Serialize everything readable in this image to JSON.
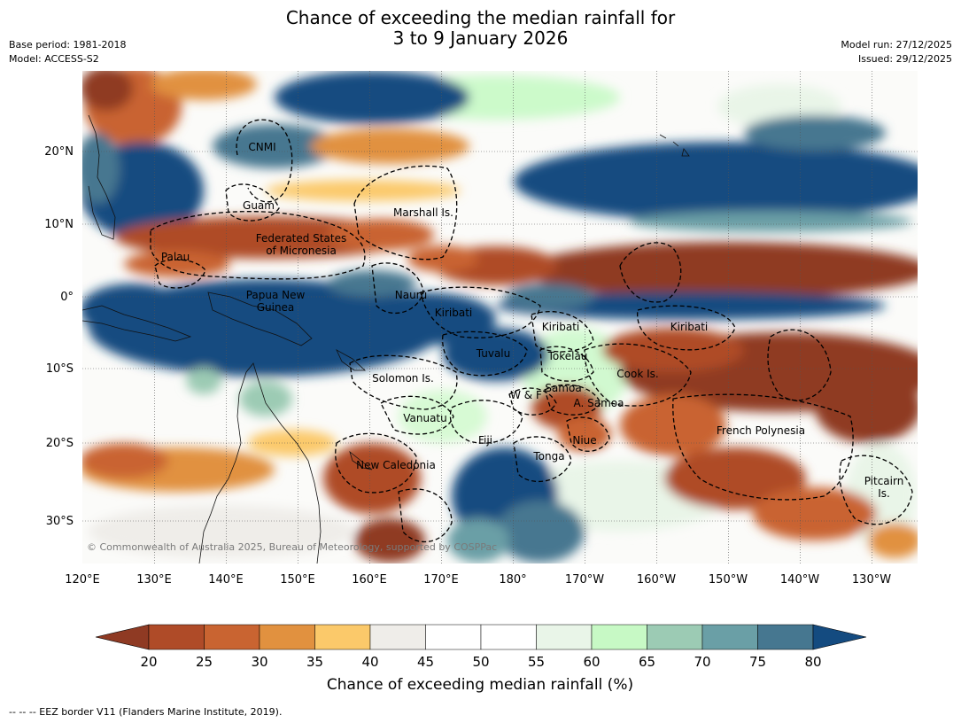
{
  "title": {
    "line1": "Chance of exceeding the median rainfall for",
    "line2": "3 to 9 January 2026"
  },
  "meta_left": {
    "base_period": "Base period: 1981-2018",
    "model": "Model: ACCESS-S2"
  },
  "meta_right": {
    "model_run": "Model run: 27/12/2025",
    "issued": "Issued: 29/12/2025"
  },
  "map": {
    "lon_labels": [
      "120°E",
      "130°E",
      "140°E",
      "150°E",
      "160°E",
      "170°E",
      "180°",
      "170°W",
      "160°W",
      "150°W",
      "140°W",
      "130°W"
    ],
    "lat_labels": [
      "20°N",
      "10°N",
      "0°",
      "10°S",
      "20°S",
      "30°S"
    ],
    "copyright": "© Commonwealth of Australia 2025, Bureau of Meteorology, supported by COSPPac",
    "regions": [
      {
        "id": "cnmi",
        "lines": [
          "CNMI"
        ]
      },
      {
        "id": "guam",
        "lines": [
          "Guam"
        ]
      },
      {
        "id": "marshall",
        "lines": [
          "Marshall Is."
        ]
      },
      {
        "id": "fsm",
        "lines": [
          "Federated States",
          "of Micronesia"
        ]
      },
      {
        "id": "palau",
        "lines": [
          "Palau"
        ]
      },
      {
        "id": "png",
        "lines": [
          "Papua New",
          "Guinea"
        ]
      },
      {
        "id": "nauru",
        "lines": [
          "Nauru"
        ]
      },
      {
        "id": "kiribati1",
        "lines": [
          "Kiribati"
        ]
      },
      {
        "id": "kiribati2",
        "lines": [
          "Kiribati"
        ]
      },
      {
        "id": "kiribati3",
        "lines": [
          "Kiribati"
        ]
      },
      {
        "id": "tuvalu",
        "lines": [
          "Tuvalu"
        ]
      },
      {
        "id": "tokelau",
        "lines": [
          "Tokelau"
        ]
      },
      {
        "id": "cook",
        "lines": [
          "Cook Is."
        ]
      },
      {
        "id": "solomon",
        "lines": [
          "Solomon Is."
        ]
      },
      {
        "id": "wf",
        "lines": [
          "W & F"
        ]
      },
      {
        "id": "samoa",
        "lines": [
          "Samoa"
        ]
      },
      {
        "id": "asamoa",
        "lines": [
          "A. Samoa"
        ]
      },
      {
        "id": "vanuatu",
        "lines": [
          "Vanuatu"
        ]
      },
      {
        "id": "fiji",
        "lines": [
          "Fiji"
        ]
      },
      {
        "id": "niue",
        "lines": [
          "Niue"
        ]
      },
      {
        "id": "tonga",
        "lines": [
          "Tonga"
        ]
      },
      {
        "id": "frpoly",
        "lines": [
          "French Polynesia"
        ]
      },
      {
        "id": "newcal",
        "lines": [
          "New Caledonia"
        ]
      },
      {
        "id": "pitcairn",
        "lines": [
          "Pitcairn",
          "Is."
        ]
      }
    ]
  },
  "colorbar": {
    "ticks": [
      "20",
      "25",
      "30",
      "35",
      "40",
      "45",
      "50",
      "55",
      "60",
      "65",
      "70",
      "75",
      "80"
    ],
    "colors": [
      "#af4b28",
      "#c96431",
      "#e1913f",
      "#fbc96a",
      "#efede9",
      "#ffffff",
      "#ffffff",
      "#e9f5e8",
      "#c7f9c5",
      "#9ccbb4",
      "#6a9fa6",
      "#467790"
    ],
    "under_color": "#8f3a23",
    "over_color": "#144b80",
    "label": "Chance of exceeding median rainfall (%)"
  },
  "footer": "--  --  -- EEZ border V11 (Flanders Marine Institute, 2019)."
}
